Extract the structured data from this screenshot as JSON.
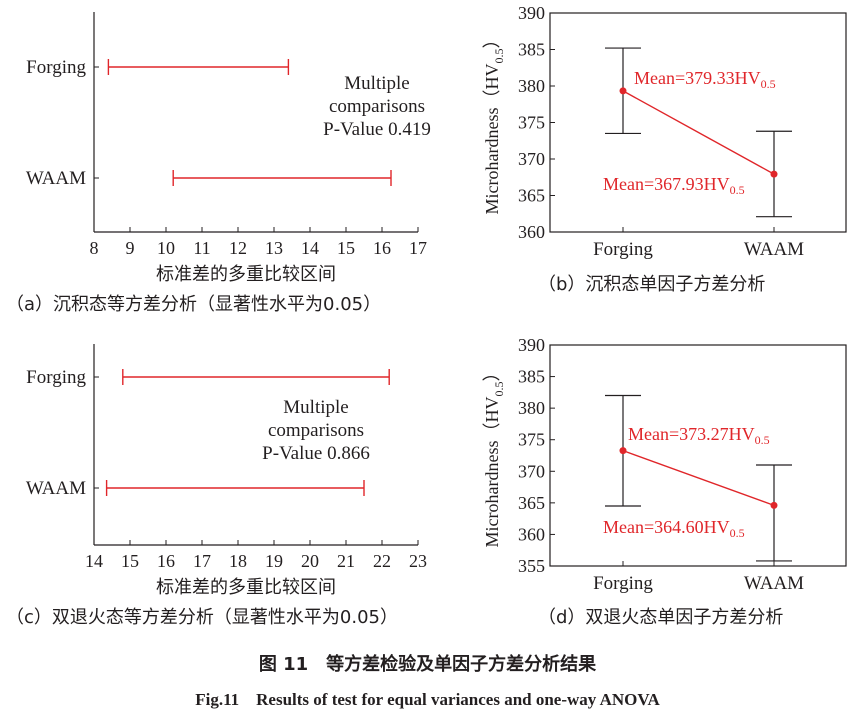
{
  "colors": {
    "axis": "#231f20",
    "red": "#e0262a"
  },
  "chart_data": [
    {
      "id": "a",
      "type": "interval",
      "categories": [
        "Forging",
        "WAAM"
      ],
      "intervals": [
        [
          8.4,
          13.4
        ],
        [
          10.2,
          16.25
        ]
      ],
      "xlim": [
        8,
        17
      ],
      "xticks": [
        8,
        9,
        10,
        11,
        12,
        13,
        14,
        15,
        16,
        17
      ],
      "xlabel": "标准差的多重比较区间",
      "annotation": [
        "Multiple",
        "comparisons",
        "P-Value 0.419"
      ],
      "caption": "（a）沉积态等方差分析（显著性水平为0.05）"
    },
    {
      "id": "b",
      "type": "errorbar-line",
      "categories": [
        "Forging",
        "WAAM"
      ],
      "means": [
        379.33,
        367.93
      ],
      "upper": [
        385.2,
        373.8
      ],
      "lower": [
        373.5,
        362.1
      ],
      "ylim": [
        360,
        390
      ],
      "yticks": [
        360,
        365,
        370,
        375,
        380,
        385,
        390
      ],
      "ylabel": "Microhardness（HV0.5）",
      "mean_labels": [
        "Mean=379.33HV",
        "Mean=367.93HV"
      ],
      "mean_label_sub": "0.5",
      "caption": "（b）沉积态单因子方差分析"
    },
    {
      "id": "c",
      "type": "interval",
      "categories": [
        "Forging",
        "WAAM"
      ],
      "intervals": [
        [
          14.8,
          22.2
        ],
        [
          14.35,
          21.5
        ]
      ],
      "xlim": [
        14,
        23
      ],
      "xticks": [
        14,
        15,
        16,
        17,
        18,
        19,
        20,
        21,
        22,
        23
      ],
      "xlabel": "标准差的多重比较区间",
      "annotation": [
        "Multiple",
        "comparisons",
        "P-Value 0.866"
      ],
      "caption": "（c）双退火态等方差分析（显著性水平为0.05）"
    },
    {
      "id": "d",
      "type": "errorbar-line",
      "categories": [
        "Forging",
        "WAAM"
      ],
      "means": [
        373.27,
        364.6
      ],
      "upper": [
        382.0,
        371.0
      ],
      "lower": [
        364.5,
        355.8
      ],
      "ylim": [
        355,
        390
      ],
      "yticks": [
        355,
        360,
        365,
        370,
        375,
        380,
        385,
        390
      ],
      "ylabel": "Microhardness（HV0.5）",
      "mean_labels": [
        "Mean=373.27HV",
        "Mean=364.60HV"
      ],
      "mean_label_sub": "0.5",
      "caption": "（d）双退火态单因子方差分析"
    }
  ],
  "figure": {
    "caption_cn": "图 11　等方差检验及单因子方差分析结果",
    "caption_en": "Fig.11　Results of test for equal variances and one-way ANOVA"
  }
}
